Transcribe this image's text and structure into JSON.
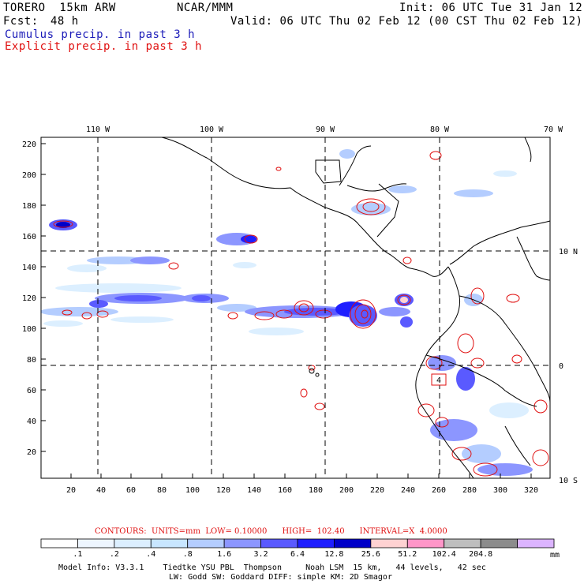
{
  "header": {
    "model": "TORERO  15km ARW",
    "org": "NCAR/MMM",
    "init": "Init: 06 UTC Tue 31 Jan 12",
    "fcst_label": "Fcst:",
    "fcst_value": "48 h",
    "valid": "Valid: 06 UTC Thu 02 Feb 12 (00 CST Thu 02 Feb 12)",
    "line_cumulus": "Cumulus precip. in past 3 h",
    "line_explicit": "Explicit precip. in past 3 h"
  },
  "map": {
    "top_lon_labels": [
      "110 W",
      "100 W",
      "90 W",
      "80 W",
      "70 W"
    ],
    "right_lat_labels": [
      "10 N",
      "0",
      "10 S"
    ],
    "left_ticks": [
      "220",
      "200",
      "180",
      "160",
      "140",
      "120",
      "100",
      "80",
      "60",
      "40",
      "20"
    ],
    "bottom_ticks": [
      "20",
      "40",
      "60",
      "80",
      "100",
      "120",
      "140",
      "160",
      "180",
      "200",
      "220",
      "240",
      "260",
      "280",
      "300",
      "320"
    ],
    "box_label": "4"
  },
  "legend": {
    "contours_label": "CONTOURS:  UNITS=mm  LOW= 0.10000      HIGH=  102.40      INTERVAL=X  4.0000",
    "values": [
      ".1",
      ".2",
      ".4",
      ".8",
      "1.6",
      "3.2",
      "6.4",
      "12.8",
      "25.6",
      "51.2",
      "102.4",
      "204.8"
    ],
    "unit": "mm",
    "colors": [
      "#ffffff",
      "#eef6ff",
      "#dcefff",
      "#c8e6ff",
      "#b4cdff",
      "#8c96ff",
      "#5a5aff",
      "#1e1eff",
      "#0000c8",
      "#ffd2d2",
      "#ff96c8",
      "#bebebe",
      "#8c8c8c",
      "#dcb4ff"
    ]
  },
  "footer": {
    "line1": "Model Info: V3.3.1    Tiedtke YSU PBL  Thompson     Noah LSM  15 km,   44 levels,   42 sec",
    "line2": "LW: Godd SW: Goddard DIFF: simple KM: 2D Smagor"
  }
}
